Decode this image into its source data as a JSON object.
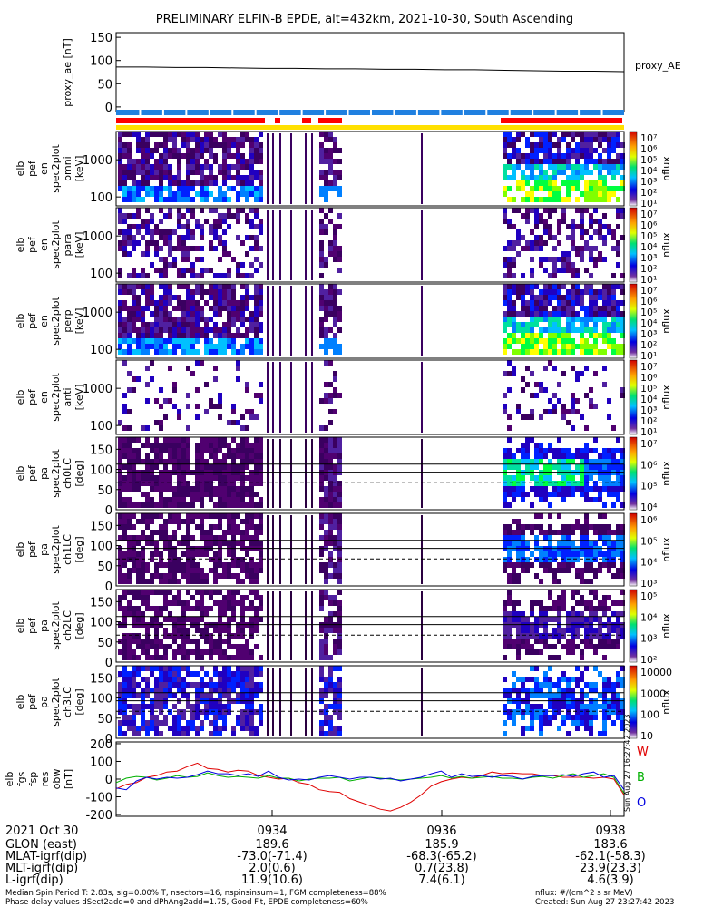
{
  "title": "PRELIMINARY ELFIN-B EPDE, alt=432km, 2021-10-30, South Ascending",
  "colors": {
    "proxy_line": "#000000",
    "sci_zone_bar": "#ff0000",
    "data_bar": "#ffe000",
    "spin_bar": "#2080e0",
    "trace_w": "#e00000",
    "trace_b": "#00b000",
    "trace_o": "#0000e0"
  },
  "chart_data": [
    {
      "id": "proxy_ae",
      "type": "line",
      "ylabel": "proxy_ae [nT]",
      "legend": "proxy_AE",
      "ylim": [
        -10,
        160
      ],
      "yticks": [
        "150",
        "100",
        "50",
        "0"
      ],
      "series": [
        {
          "values": [
            86,
            86,
            85,
            85,
            84,
            83,
            83,
            82,
            82,
            81,
            81,
            80,
            80,
            79,
            78,
            77,
            77,
            76
          ]
        }
      ]
    },
    {
      "id": "en_0",
      "type": "heatmap",
      "ylabel": [
        "elb",
        "pef",
        "en",
        "spec2plot",
        "omni",
        "[keV]"
      ],
      "yticks": [
        "1000",
        "100"
      ],
      "zlabel": "nflux",
      "zticks": [
        "10⁷",
        "10⁶",
        "10⁵",
        "10⁴",
        "10³",
        "10²",
        "10¹"
      ]
    },
    {
      "id": "en_1",
      "type": "heatmap",
      "ylabel": [
        "elb",
        "pef",
        "en",
        "spec2plot",
        "para",
        "[keV]"
      ],
      "yticks": [
        "1000",
        "100"
      ],
      "zlabel": "nflux",
      "zticks": [
        "10⁷",
        "10⁶",
        "10⁵",
        "10⁴",
        "10³",
        "10²",
        "10¹"
      ]
    },
    {
      "id": "en_2",
      "type": "heatmap",
      "ylabel": [
        "elb",
        "pef",
        "en",
        "spec2plot",
        "perp",
        "[keV]"
      ],
      "yticks": [
        "1000",
        "100"
      ],
      "zlabel": "nflux",
      "zticks": [
        "10⁷",
        "10⁶",
        "10⁵",
        "10⁴",
        "10³",
        "10²",
        "10¹"
      ]
    },
    {
      "id": "en_3",
      "type": "heatmap",
      "ylabel": [
        "elb",
        "pef",
        "en",
        "spec2plot",
        "anti",
        "[keV]"
      ],
      "yticks": [
        "1000",
        "100"
      ],
      "zlabel": "nflux",
      "zticks": [
        "10⁷",
        "10⁶",
        "10⁵",
        "10⁴",
        "10³",
        "10²",
        "10¹"
      ]
    },
    {
      "id": "pa_0",
      "type": "heatmap",
      "ylabel": [
        "elb",
        "pef",
        "pa",
        "spec2plot",
        "ch0LC",
        "[deg]"
      ],
      "yticks": [
        "150",
        "100",
        "50",
        "0"
      ],
      "zlabel": "nflux",
      "zticks": [
        "10⁷",
        "10⁶",
        "10⁵",
        "10⁴"
      ]
    },
    {
      "id": "pa_1",
      "type": "heatmap",
      "ylabel": [
        "elb",
        "pef",
        "pa",
        "spec2plot",
        "ch1LC",
        "[deg]"
      ],
      "yticks": [
        "150",
        "100",
        "50",
        "0"
      ],
      "zlabel": "nflux",
      "zticks": [
        "10⁶",
        "10⁵",
        "10⁴",
        "10³"
      ]
    },
    {
      "id": "pa_2",
      "type": "heatmap",
      "ylabel": [
        "elb",
        "pef",
        "pa",
        "spec2plot",
        "ch2LC",
        "[deg]"
      ],
      "yticks": [
        "150",
        "100",
        "50",
        "0"
      ],
      "zlabel": "nflux",
      "zticks": [
        "10⁵",
        "10⁴",
        "10³",
        "10²"
      ]
    },
    {
      "id": "pa_3",
      "type": "heatmap",
      "ylabel": [
        "elb",
        "pef",
        "pa",
        "spec2plot",
        "ch3LC",
        "[deg]"
      ],
      "yticks": [
        "150",
        "100",
        "50",
        "0"
      ],
      "zlabel": "nflux",
      "zticks": [
        "10000",
        "1000",
        "100",
        "10"
      ]
    },
    {
      "id": "fgs_res",
      "type": "line",
      "ylabel": [
        "elb",
        "fgs",
        "fsp",
        "res",
        "obw",
        "[nT]"
      ],
      "ylim": [
        -210,
        210
      ],
      "yticks": [
        "200",
        "100",
        "0",
        "-100",
        "-200"
      ],
      "series": [
        {
          "name": "W",
          "values": [
            -55,
            -30,
            -20,
            10,
            20,
            40,
            45,
            70,
            90,
            60,
            55,
            40,
            50,
            45,
            20,
            10,
            0,
            5,
            -20,
            -30,
            -60,
            -70,
            -75,
            -110,
            -130,
            -150,
            -170,
            -180,
            -160,
            -130,
            -90,
            -40,
            -15,
            0,
            10,
            5,
            20,
            40,
            30,
            35,
            30,
            30,
            20,
            20,
            10,
            10,
            10,
            5,
            10,
            0,
            -90
          ]
        },
        {
          "name": "B",
          "values": [
            -20,
            5,
            15,
            10,
            -5,
            5,
            20,
            10,
            15,
            35,
            20,
            10,
            15,
            10,
            5,
            20,
            5,
            5,
            -10,
            0,
            5,
            5,
            10,
            -10,
            0,
            10,
            5,
            0,
            -5,
            0,
            5,
            10,
            20,
            5,
            15,
            5,
            10,
            15,
            5,
            5,
            0,
            10,
            15,
            5,
            20,
            30,
            10,
            20,
            30,
            10,
            -80
          ]
        },
        {
          "name": "O",
          "values": [
            -50,
            -60,
            -10,
            10,
            0,
            10,
            5,
            10,
            25,
            45,
            30,
            30,
            20,
            30,
            15,
            45,
            10,
            -5,
            0,
            -5,
            10,
            20,
            10,
            0,
            10,
            10,
            0,
            5,
            -10,
            0,
            10,
            30,
            45,
            10,
            30,
            15,
            20,
            10,
            20,
            15,
            0,
            15,
            20,
            20,
            25,
            15,
            30,
            40,
            10,
            20,
            -60
          ]
        }
      ]
    }
  ],
  "time_axis": {
    "date": "2021 Oct 30",
    "ticks": [
      "0934",
      "0936",
      "0938"
    ],
    "rows": [
      {
        "label": "GLON (east)",
        "values": [
          "189.6",
          "185.9",
          "183.6"
        ]
      },
      {
        "label": "MLAT-igrf(dip)",
        "values": [
          "-73.0(-71.4)",
          "-68.3(-65.2)",
          "-62.1(-58.3)"
        ]
      },
      {
        "label": "MLT-igrf(dip)",
        "values": [
          "2.0(0.6)",
          "0.7(23.8)",
          "23.9(23.3)"
        ]
      },
      {
        "label": "L-igrf(dip)",
        "values": [
          "11.9(10.6)",
          "7.4(6.1)",
          "4.6(3.9)"
        ]
      }
    ]
  },
  "footer": {
    "left1": "Median Spin Period T: 2.83s, sig=0.00% T, nsectors=16, nspinsinsum=1, FGM completeness=88%",
    "left2": "Phase delay values dSect2add=0 and dPhAng2add=1.75, Good Fit, EPDE completeness=60%",
    "right1": "nflux: #/(cm^2 s sr MeV)",
    "right2": "Created: Sun Aug 27 23:27:42 2023",
    "side_stamp": "Sun Aug 27 16:27:42 2023"
  }
}
